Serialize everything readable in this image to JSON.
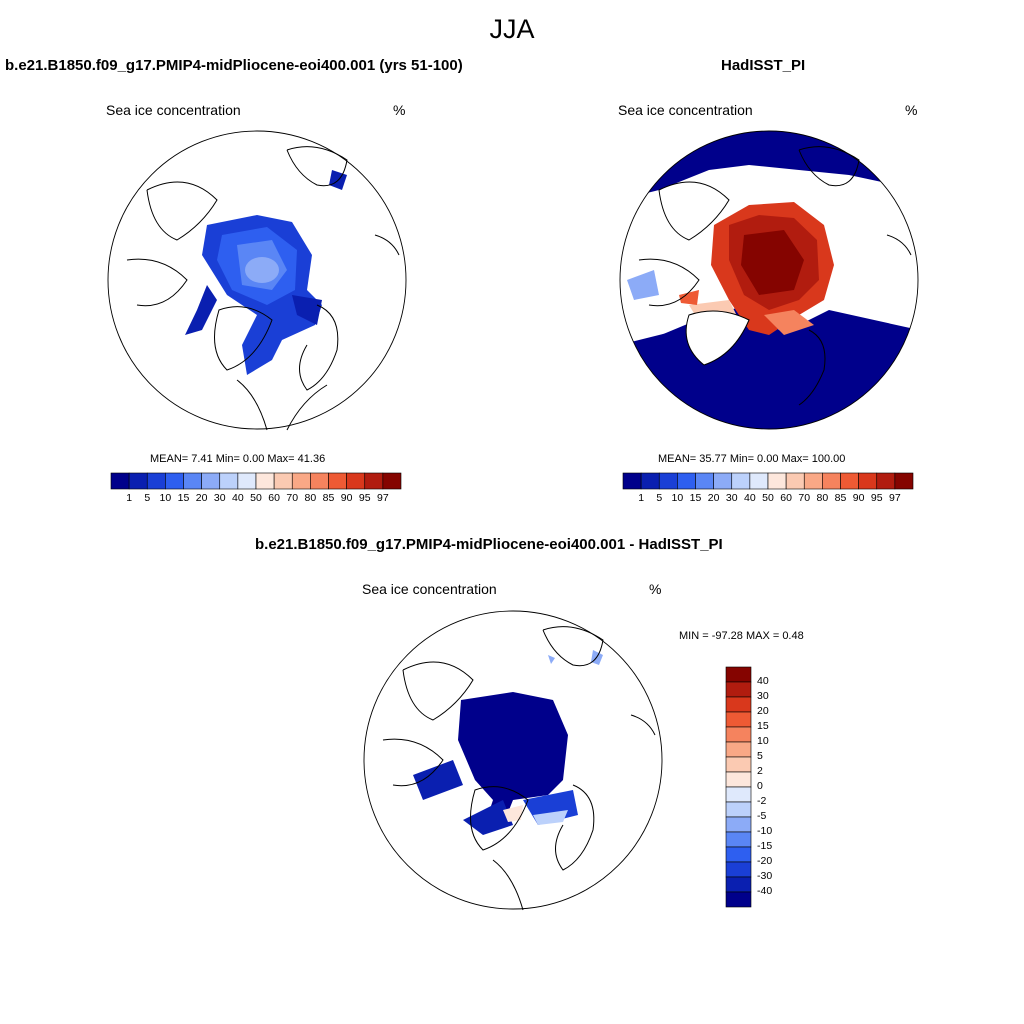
{
  "title": "JJA",
  "colors": {
    "ice_scale": [
      "#00008b",
      "#0a1fb0",
      "#1a3fd6",
      "#2e5ff0",
      "#5a86f5",
      "#8cabf7",
      "#bcd1fb",
      "#dfe9fc",
      "#fde7dc",
      "#fbcab2",
      "#f9a886",
      "#f5835e",
      "#ee5a34",
      "#d9381c",
      "#b11c0f",
      "#850400"
    ],
    "diff_scale": [
      "#850400",
      "#b11c0f",
      "#d9381c",
      "#ee5a34",
      "#f5835e",
      "#f9a886",
      "#fbcab2",
      "#fde7dc",
      "#dfe9fc",
      "#bcd1fb",
      "#8cabf7",
      "#5a86f5",
      "#2e5ff0",
      "#1a3fd6",
      "#0a1fb0",
      "#00008b"
    ]
  },
  "panels": [
    {
      "title": "b.e21.B1850.f09_g17.PMIP4-midPliocene-eoi400.001 (yrs 51-100)",
      "variable": "Sea ice concentration",
      "units": "%",
      "stats": "MEAN=   7.41  Min=   0.00  Max=  41.36",
      "colorbar_labels": [
        "1",
        "5",
        "10",
        "15",
        "20",
        "30",
        "40",
        "50",
        "60",
        "70",
        "80",
        "85",
        "90",
        "95",
        "97"
      ]
    },
    {
      "title": "HadISST_PI",
      "variable": "Sea ice concentration",
      "units": "%",
      "stats": "MEAN=  35.77  Min=   0.00  Max= 100.00",
      "colorbar_labels": [
        "1",
        "5",
        "10",
        "15",
        "20",
        "30",
        "40",
        "50",
        "60",
        "70",
        "80",
        "85",
        "90",
        "95",
        "97"
      ]
    },
    {
      "title": "b.e21.B1850.f09_g17.PMIP4-midPliocene-eoi400.001 - HadISST_PI",
      "variable": "Sea ice concentration",
      "units": "%",
      "stats": "MIN = -97.28 MAX =   0.48",
      "colorbar_labels": [
        "40",
        "30",
        "20",
        "15",
        "10",
        "5",
        "2",
        "0",
        "-2",
        "-5",
        "-10",
        "-15",
        "-20",
        "-30",
        "-40"
      ]
    }
  ]
}
